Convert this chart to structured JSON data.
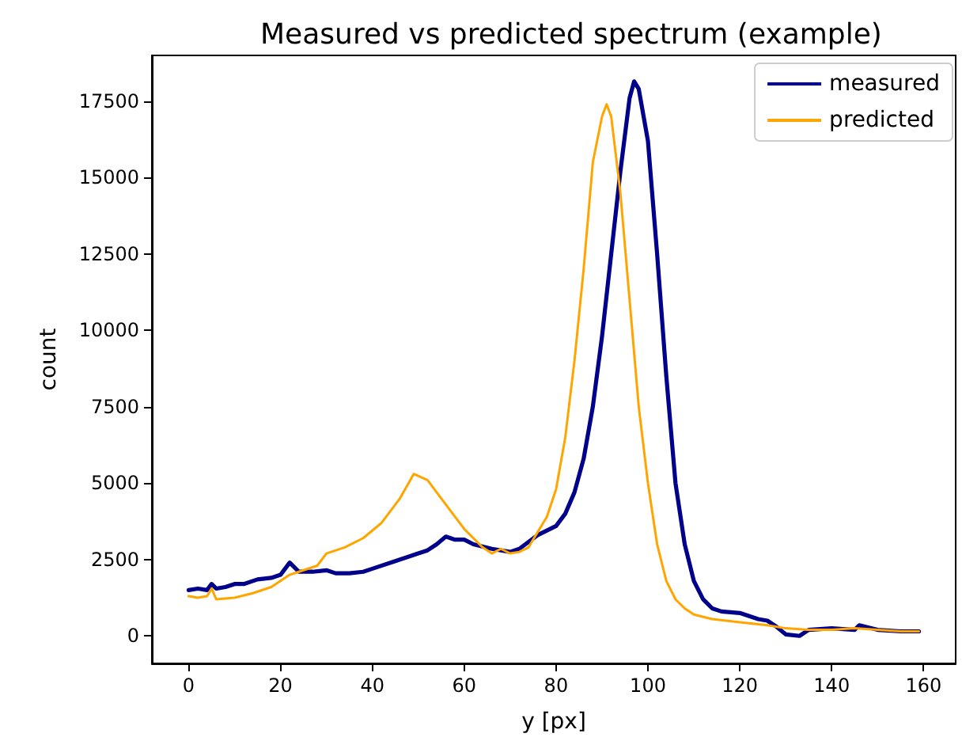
{
  "chart_data": {
    "type": "line",
    "title": "Measured vs predicted spectrum (example)",
    "xlabel": "y [px]",
    "ylabel": "count",
    "xlim": [
      -8,
      167
    ],
    "xticks": [
      0,
      20,
      40,
      60,
      80,
      100,
      120,
      140,
      160
    ],
    "ylim": [
      -900,
      19000
    ],
    "yticks": [
      0,
      2500,
      5000,
      7500,
      10000,
      12500,
      15000,
      17500
    ],
    "grid": false,
    "legend": "top right",
    "marker": "none",
    "line_style": "solid",
    "series": [
      {
        "name": "measured",
        "color": "#00008b",
        "x": [
          0,
          2,
          4,
          5,
          6,
          8,
          10,
          12,
          15,
          18,
          20,
          22,
          24,
          27,
          30,
          32,
          35,
          38,
          40,
          45,
          50,
          52,
          54,
          56,
          58,
          60,
          62,
          66,
          70,
          72,
          76,
          80,
          82,
          84,
          86,
          88,
          90,
          92,
          94,
          96,
          97,
          98,
          100,
          102,
          104,
          106,
          108,
          110,
          112,
          114,
          116,
          120,
          124,
          126,
          128,
          130,
          133,
          135,
          140,
          145,
          146,
          150,
          155,
          159
        ],
        "values": [
          1500,
          1550,
          1500,
          1700,
          1550,
          1600,
          1700,
          1700,
          1850,
          1900,
          2000,
          2400,
          2100,
          2100,
          2150,
          2050,
          2050,
          2100,
          2200,
          2450,
          2700,
          2800,
          3000,
          3250,
          3150,
          3150,
          3000,
          2850,
          2750,
          2850,
          3300,
          3600,
          4000,
          4700,
          5800,
          7500,
          9800,
          12500,
          15200,
          17600,
          18150,
          17900,
          16200,
          12500,
          8500,
          5000,
          3000,
          1800,
          1200,
          900,
          800,
          750,
          550,
          500,
          300,
          50,
          0,
          200,
          250,
          200,
          350,
          200,
          150,
          150
        ]
      },
      {
        "name": "predicted",
        "color": "#ffa500",
        "x": [
          0,
          2,
          4,
          5,
          6,
          10,
          14,
          18,
          20,
          22,
          24,
          28,
          30,
          34,
          38,
          42,
          46,
          49,
          52,
          56,
          60,
          64,
          66,
          68,
          70,
          72,
          74,
          76,
          78,
          80,
          82,
          84,
          86,
          88,
          90,
          91,
          92,
          94,
          96,
          98,
          100,
          102,
          104,
          106,
          108,
          110,
          114,
          120,
          126,
          130,
          135,
          140,
          145,
          150,
          155,
          159
        ],
        "values": [
          1300,
          1250,
          1300,
          1550,
          1200,
          1250,
          1400,
          1600,
          1800,
          2000,
          2100,
          2300,
          2700,
          2900,
          3200,
          3700,
          4500,
          5300,
          5100,
          4300,
          3500,
          2900,
          2700,
          2850,
          2700,
          2750,
          2900,
          3400,
          3900,
          4800,
          6500,
          9000,
          12000,
          15500,
          17000,
          17400,
          17000,
          14500,
          11000,
          7500,
          5000,
          3000,
          1800,
          1200,
          900,
          700,
          550,
          450,
          350,
          250,
          200,
          200,
          250,
          200,
          150,
          150
        ]
      }
    ]
  }
}
